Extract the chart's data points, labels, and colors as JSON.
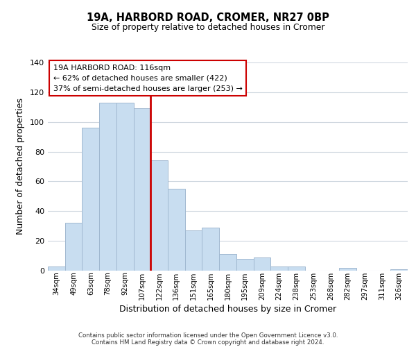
{
  "title": "19A, HARBORD ROAD, CROMER, NR27 0BP",
  "subtitle": "Size of property relative to detached houses in Cromer",
  "xlabel": "Distribution of detached houses by size in Cromer",
  "ylabel": "Number of detached properties",
  "bar_labels": [
    "34sqm",
    "49sqm",
    "63sqm",
    "78sqm",
    "92sqm",
    "107sqm",
    "122sqm",
    "136sqm",
    "151sqm",
    "165sqm",
    "180sqm",
    "195sqm",
    "209sqm",
    "224sqm",
    "238sqm",
    "253sqm",
    "268sqm",
    "282sqm",
    "297sqm",
    "311sqm",
    "326sqm"
  ],
  "bar_values": [
    3,
    32,
    96,
    113,
    113,
    109,
    74,
    55,
    27,
    29,
    11,
    8,
    9,
    3,
    3,
    0,
    0,
    2,
    0,
    0,
    1
  ],
  "bar_color": "#c8ddf0",
  "bar_edgecolor": "#a0b8d0",
  "vline_x": 6.0,
  "vline_color": "#cc0000",
  "ylim": [
    0,
    140
  ],
  "yticks": [
    0,
    20,
    40,
    60,
    80,
    100,
    120,
    140
  ],
  "annotation_title": "19A HARBORD ROAD: 116sqm",
  "annotation_line1": "← 62% of detached houses are smaller (422)",
  "annotation_line2": "37% of semi-detached houses are larger (253) →",
  "annotation_box_color": "#ffffff",
  "annotation_box_edgecolor": "#cc0000",
  "footer_line1": "Contains HM Land Registry data © Crown copyright and database right 2024.",
  "footer_line2": "Contains public sector information licensed under the Open Government Licence v3.0.",
  "background_color": "#ffffff",
  "grid_color": "#d0d8e0"
}
